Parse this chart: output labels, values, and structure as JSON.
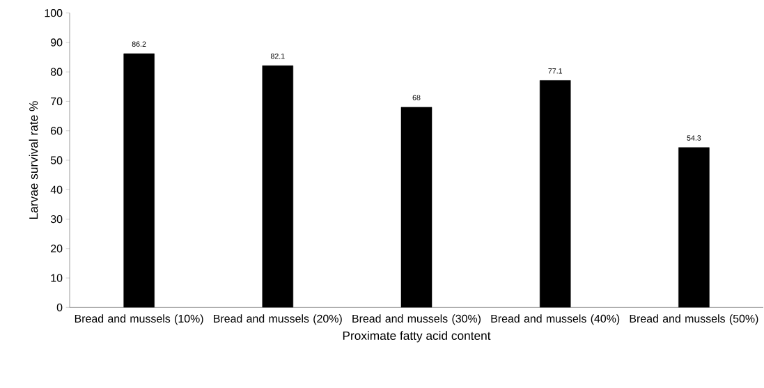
{
  "chart_data": {
    "type": "bar",
    "xlabel": "Proximate fatty acid content",
    "ylabel": "Larvae survival rate %",
    "categories": [
      "Bread and mussels (10%)",
      "Bread and mussels (20%)",
      "Bread and mussels (30%)",
      "Bread and mussels (40%)",
      "Bread and mussels (50%)"
    ],
    "values": [
      86.2,
      82.1,
      68,
      77.1,
      54.3
    ],
    "color": "#000000",
    "ylim": [
      0,
      100
    ],
    "yticks": [
      0,
      10,
      20,
      30,
      40,
      50,
      60,
      70,
      80,
      90,
      100
    ],
    "data_labels": true,
    "grid": false
  }
}
